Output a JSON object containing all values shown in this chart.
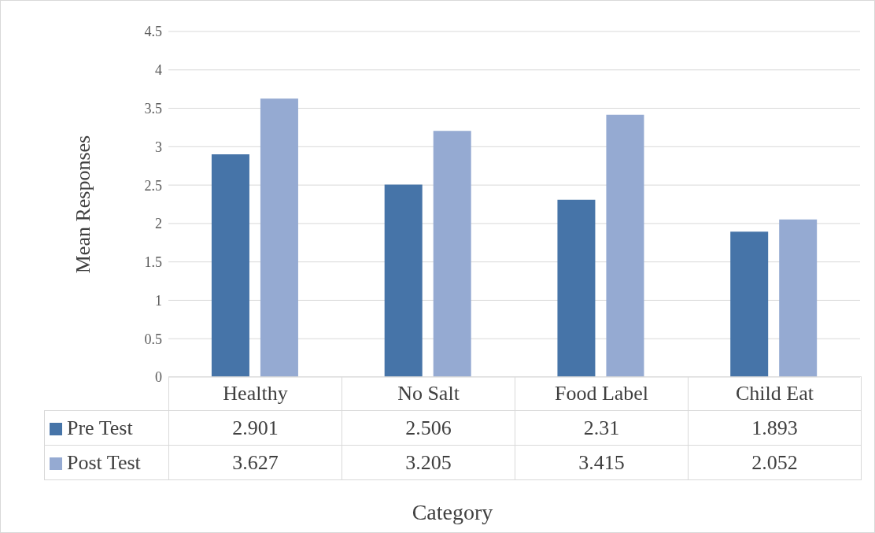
{
  "chart_data": {
    "type": "bar",
    "xlabel": "Category",
    "ylabel": "Mean Responses",
    "categories": [
      "Healthy",
      "No Salt",
      "Food Label",
      "Child Eat"
    ],
    "series": [
      {
        "name": "Pre Test",
        "color": "#4674a8",
        "values": [
          2.901,
          2.506,
          2.31,
          1.893
        ]
      },
      {
        "name": "Post Test",
        "color": "#95aad2",
        "values": [
          3.627,
          3.205,
          3.415,
          2.052
        ]
      }
    ],
    "ylim": [
      0,
      4.5
    ],
    "yticks": [
      0,
      0.5,
      1,
      1.5,
      2,
      2.5,
      3,
      3.5,
      4,
      4.5
    ],
    "grid": "y",
    "legend": "bottom",
    "data_labels": true
  }
}
